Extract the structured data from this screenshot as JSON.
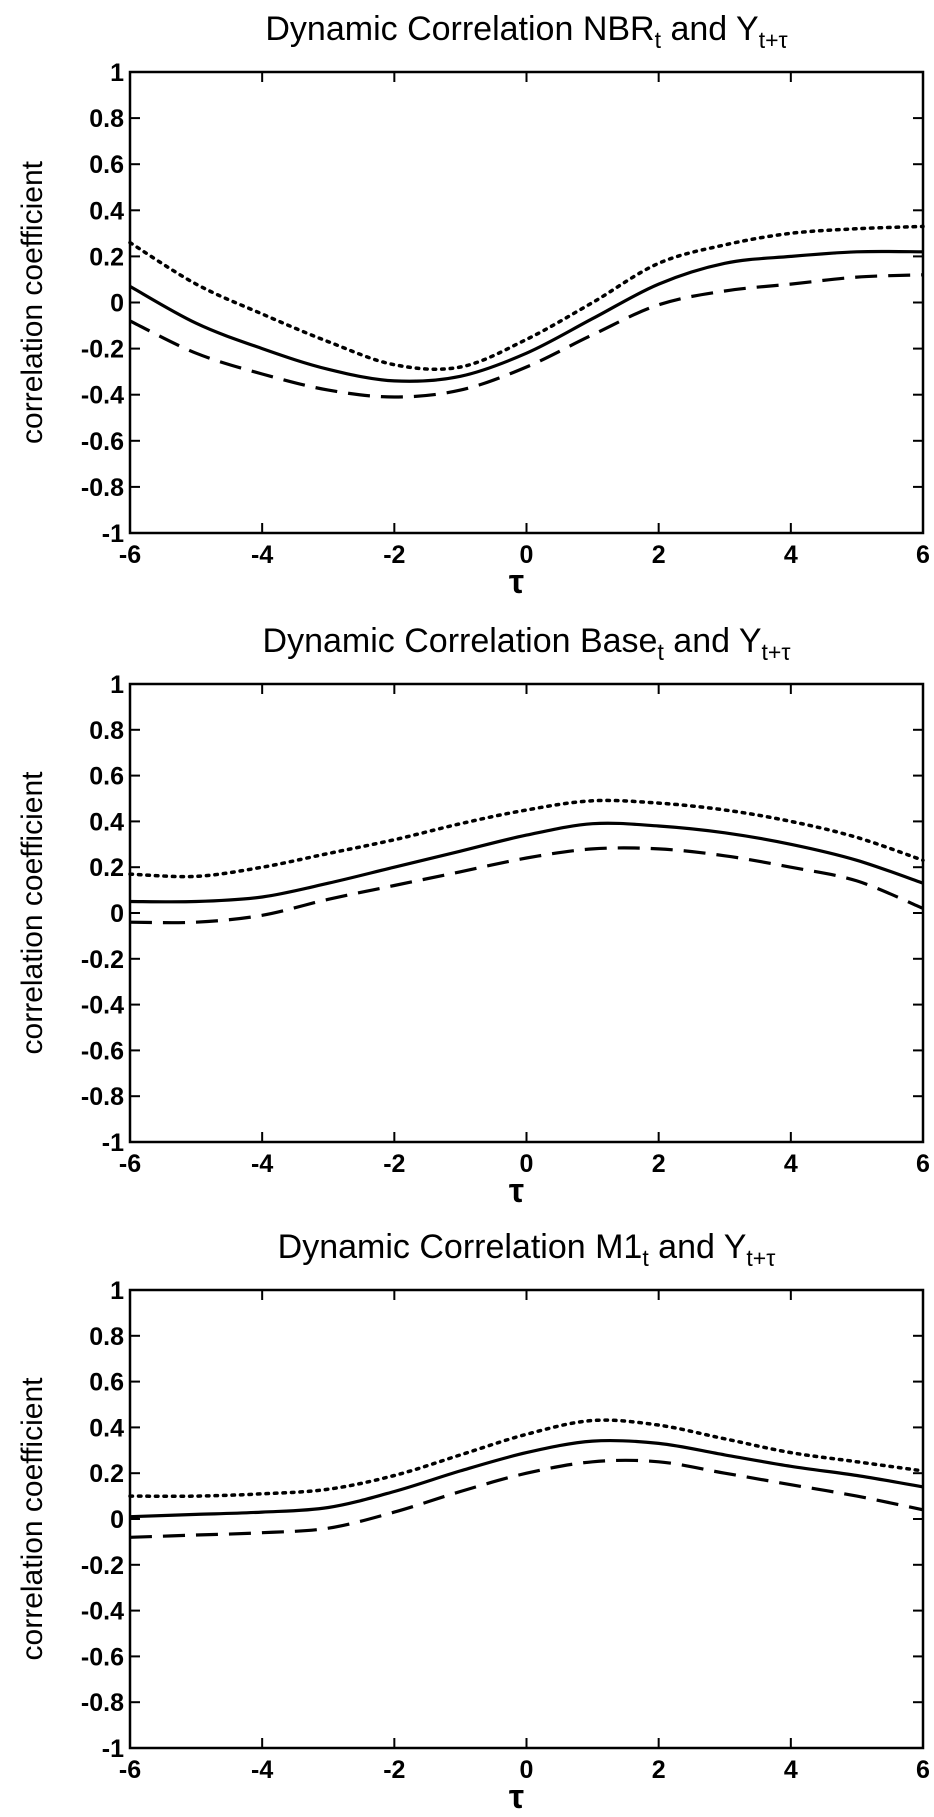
{
  "chart_data": [
    {
      "type": "line",
      "title": {
        "main": "Dynamic Correlation NBR",
        "sub1": "t",
        "mid": " and Y",
        "sub2": "t+τ"
      },
      "xlabel": "τ",
      "ylabel": "correlation coefficient",
      "xlim": [
        -6,
        6
      ],
      "ylim": [
        -1,
        1
      ],
      "xticks": [
        "-6",
        "-4",
        "-2",
        "0",
        "2",
        "4",
        "6"
      ],
      "yticks": [
        "-1",
        "-0.8",
        "-0.6",
        "-0.4",
        "-0.2",
        "0",
        "0.2",
        "0.4",
        "0.6",
        "0.8",
        "1"
      ],
      "grid": false,
      "x": [
        -6,
        -5,
        -4,
        -3,
        -2,
        -1,
        0,
        1,
        2,
        3,
        4,
        5,
        6
      ],
      "series": [
        {
          "style": "dotted",
          "values": [
            0.26,
            0.08,
            -0.05,
            -0.17,
            -0.27,
            -0.28,
            -0.16,
            0.0,
            0.17,
            0.25,
            0.3,
            0.32,
            0.33
          ]
        },
        {
          "style": "solid",
          "values": [
            0.07,
            -0.09,
            -0.2,
            -0.29,
            -0.34,
            -0.32,
            -0.22,
            -0.07,
            0.08,
            0.17,
            0.2,
            0.22,
            0.22
          ]
        },
        {
          "style": "dashed",
          "values": [
            -0.08,
            -0.22,
            -0.31,
            -0.38,
            -0.41,
            -0.38,
            -0.28,
            -0.14,
            -0.01,
            0.05,
            0.08,
            0.11,
            0.12
          ]
        }
      ]
    },
    {
      "type": "line",
      "title": {
        "main": "Dynamic Correlation Base",
        "sub1": "t",
        "mid": " and Y",
        "sub2": "t+τ"
      },
      "xlabel": "τ",
      "ylabel": "correlation coefficient",
      "xlim": [
        -6,
        6
      ],
      "ylim": [
        -1,
        1
      ],
      "xticks": [
        "-6",
        "-4",
        "-2",
        "0",
        "2",
        "4",
        "6"
      ],
      "yticks": [
        "-1",
        "-0.8",
        "-0.6",
        "-0.4",
        "-0.2",
        "0",
        "0.2",
        "0.4",
        "0.6",
        "0.8",
        "1"
      ],
      "grid": false,
      "x": [
        -6,
        -5,
        -4,
        -3,
        -2,
        -1,
        0,
        1,
        2,
        3,
        4,
        5,
        6
      ],
      "series": [
        {
          "style": "dotted",
          "values": [
            0.17,
            0.16,
            0.2,
            0.26,
            0.32,
            0.39,
            0.45,
            0.49,
            0.48,
            0.45,
            0.4,
            0.33,
            0.23
          ]
        },
        {
          "style": "solid",
          "values": [
            0.05,
            0.05,
            0.07,
            0.13,
            0.2,
            0.27,
            0.34,
            0.39,
            0.38,
            0.35,
            0.3,
            0.23,
            0.13
          ]
        },
        {
          "style": "dashed",
          "values": [
            -0.04,
            -0.04,
            -0.01,
            0.06,
            0.12,
            0.18,
            0.24,
            0.28,
            0.28,
            0.25,
            0.2,
            0.14,
            0.02
          ]
        }
      ]
    },
    {
      "type": "line",
      "title": {
        "main": "Dynamic Correlation M1",
        "sub1": "t",
        "mid": " and Y",
        "sub2": "t+τ"
      },
      "xlabel": "τ",
      "ylabel": "correlation coefficient",
      "xlim": [
        -6,
        6
      ],
      "ylim": [
        -1,
        1
      ],
      "xticks": [
        "-6",
        "-4",
        "-2",
        "0",
        "2",
        "4",
        "6"
      ],
      "yticks": [
        "-1",
        "-0.8",
        "-0.6",
        "-0.4",
        "-0.2",
        "0",
        "0.2",
        "0.4",
        "0.6",
        "0.8",
        "1"
      ],
      "grid": false,
      "x": [
        -6,
        -5,
        -4,
        -3,
        -2,
        -1,
        0,
        1,
        2,
        3,
        4,
        5,
        6
      ],
      "series": [
        {
          "style": "dotted",
          "values": [
            0.1,
            0.1,
            0.11,
            0.13,
            0.19,
            0.28,
            0.37,
            0.43,
            0.41,
            0.35,
            0.29,
            0.25,
            0.21
          ]
        },
        {
          "style": "solid",
          "values": [
            0.01,
            0.02,
            0.03,
            0.05,
            0.12,
            0.21,
            0.29,
            0.34,
            0.33,
            0.28,
            0.23,
            0.19,
            0.14
          ]
        },
        {
          "style": "dashed",
          "values": [
            -0.08,
            -0.07,
            -0.06,
            -0.04,
            0.03,
            0.12,
            0.2,
            0.25,
            0.25,
            0.2,
            0.15,
            0.1,
            0.04
          ]
        }
      ]
    }
  ]
}
